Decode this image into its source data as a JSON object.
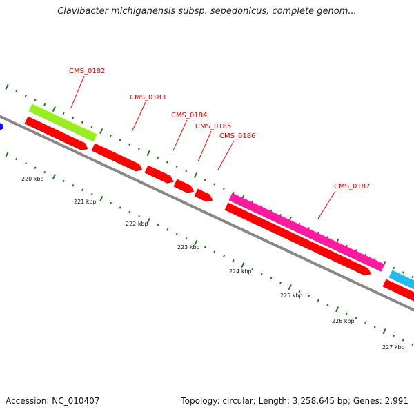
{
  "title": "Clavibacter michiganensis subsp. sepedonicus, complete genom...",
  "footer": {
    "accession": "Accession: NC_010407",
    "summary": "Topology: circular; Length: 3,258,645 bp; Genes: 2,991"
  },
  "map": {
    "gene_color": "#ff0000",
    "backbone_color": "#888888",
    "tick_color": "#1a7a1a",
    "scale_labels": [
      "220 kbp",
      "221 kbp",
      "222 kbp",
      "223 kbp",
      "224 kbp",
      "225 kbp",
      "226 kbp",
      "227 kbp"
    ],
    "gene_labels": [
      "CMS_0182",
      "CMS_0183",
      "CMS_0184",
      "CMS_0185",
      "CMS_0186",
      "CMS_0187"
    ]
  }
}
